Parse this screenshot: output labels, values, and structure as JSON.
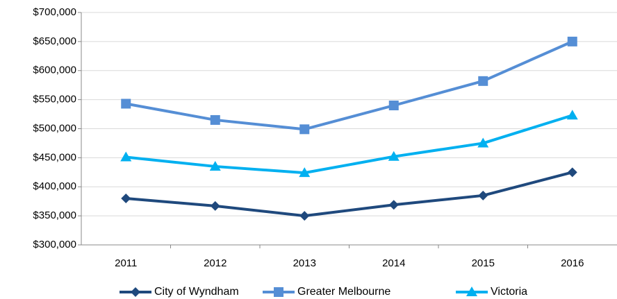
{
  "chart_data": {
    "type": "line",
    "categories": [
      "2011",
      "2012",
      "2013",
      "2014",
      "2015",
      "2016"
    ],
    "series": [
      {
        "name": "City of Wyndham",
        "color": "#1f497d",
        "marker": "diamond",
        "values": [
          380000,
          367000,
          350000,
          369000,
          385000,
          425000
        ]
      },
      {
        "name": "Greater Melbourne",
        "color": "#558ed5",
        "marker": "square",
        "values": [
          543000,
          515000,
          499000,
          540000,
          582000,
          650000
        ]
      },
      {
        "name": "Victoria",
        "color": "#00b0f0",
        "marker": "triangle",
        "values": [
          451000,
          435000,
          424000,
          452000,
          475000,
          523000
        ]
      }
    ],
    "ylim": [
      300000,
      700000
    ],
    "yticks": [
      {
        "value": 300000,
        "label": "$300,000"
      },
      {
        "value": 350000,
        "label": "$350,000"
      },
      {
        "value": 400000,
        "label": "$400,000"
      },
      {
        "value": 450000,
        "label": "$450,000"
      },
      {
        "value": 500000,
        "label": "$500,000"
      },
      {
        "value": 550000,
        "label": "$550,000"
      },
      {
        "value": 600000,
        "label": "$600,000"
      },
      {
        "value": 650000,
        "label": "$650,000"
      },
      {
        "value": 700000,
        "label": "$700,000"
      }
    ],
    "grid": true,
    "legend": "bottom"
  }
}
